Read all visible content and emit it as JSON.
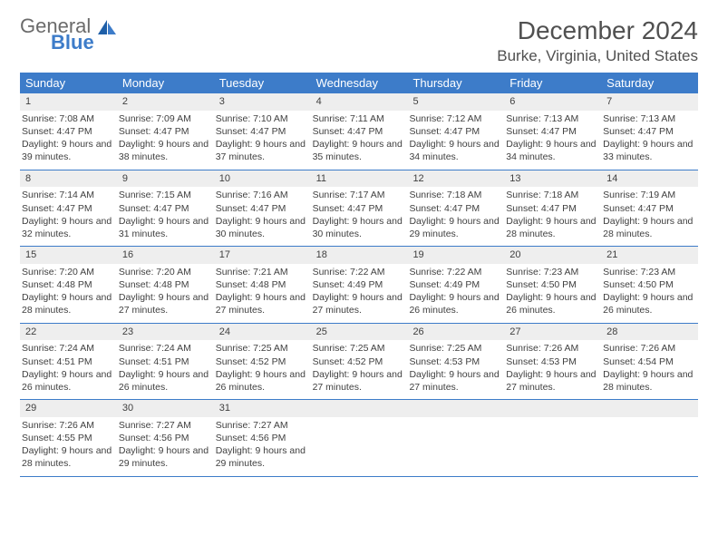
{
  "logo": {
    "word1": "General",
    "word2": "Blue"
  },
  "title": "December 2024",
  "location": "Burke, Virginia, United States",
  "colors": {
    "header_bar": "#3d7cc9",
    "day_num_bg": "#eeeeee",
    "text": "#404040",
    "logo_gray": "#6b6b6b",
    "logo_blue": "#3d7cc9",
    "week_border": "#3d7cc9",
    "background": "#ffffff"
  },
  "days_of_week": [
    "Sunday",
    "Monday",
    "Tuesday",
    "Wednesday",
    "Thursday",
    "Friday",
    "Saturday"
  ],
  "weeks": [
    [
      {
        "n": "1",
        "sunrise": "7:08 AM",
        "sunset": "4:47 PM",
        "dl": "9 hours and 39 minutes."
      },
      {
        "n": "2",
        "sunrise": "7:09 AM",
        "sunset": "4:47 PM",
        "dl": "9 hours and 38 minutes."
      },
      {
        "n": "3",
        "sunrise": "7:10 AM",
        "sunset": "4:47 PM",
        "dl": "9 hours and 37 minutes."
      },
      {
        "n": "4",
        "sunrise": "7:11 AM",
        "sunset": "4:47 PM",
        "dl": "9 hours and 35 minutes."
      },
      {
        "n": "5",
        "sunrise": "7:12 AM",
        "sunset": "4:47 PM",
        "dl": "9 hours and 34 minutes."
      },
      {
        "n": "6",
        "sunrise": "7:13 AM",
        "sunset": "4:47 PM",
        "dl": "9 hours and 34 minutes."
      },
      {
        "n": "7",
        "sunrise": "7:13 AM",
        "sunset": "4:47 PM",
        "dl": "9 hours and 33 minutes."
      }
    ],
    [
      {
        "n": "8",
        "sunrise": "7:14 AM",
        "sunset": "4:47 PM",
        "dl": "9 hours and 32 minutes."
      },
      {
        "n": "9",
        "sunrise": "7:15 AM",
        "sunset": "4:47 PM",
        "dl": "9 hours and 31 minutes."
      },
      {
        "n": "10",
        "sunrise": "7:16 AM",
        "sunset": "4:47 PM",
        "dl": "9 hours and 30 minutes."
      },
      {
        "n": "11",
        "sunrise": "7:17 AM",
        "sunset": "4:47 PM",
        "dl": "9 hours and 30 minutes."
      },
      {
        "n": "12",
        "sunrise": "7:18 AM",
        "sunset": "4:47 PM",
        "dl": "9 hours and 29 minutes."
      },
      {
        "n": "13",
        "sunrise": "7:18 AM",
        "sunset": "4:47 PM",
        "dl": "9 hours and 28 minutes."
      },
      {
        "n": "14",
        "sunrise": "7:19 AM",
        "sunset": "4:47 PM",
        "dl": "9 hours and 28 minutes."
      }
    ],
    [
      {
        "n": "15",
        "sunrise": "7:20 AM",
        "sunset": "4:48 PM",
        "dl": "9 hours and 28 minutes."
      },
      {
        "n": "16",
        "sunrise": "7:20 AM",
        "sunset": "4:48 PM",
        "dl": "9 hours and 27 minutes."
      },
      {
        "n": "17",
        "sunrise": "7:21 AM",
        "sunset": "4:48 PM",
        "dl": "9 hours and 27 minutes."
      },
      {
        "n": "18",
        "sunrise": "7:22 AM",
        "sunset": "4:49 PM",
        "dl": "9 hours and 27 minutes."
      },
      {
        "n": "19",
        "sunrise": "7:22 AM",
        "sunset": "4:49 PM",
        "dl": "9 hours and 26 minutes."
      },
      {
        "n": "20",
        "sunrise": "7:23 AM",
        "sunset": "4:50 PM",
        "dl": "9 hours and 26 minutes."
      },
      {
        "n": "21",
        "sunrise": "7:23 AM",
        "sunset": "4:50 PM",
        "dl": "9 hours and 26 minutes."
      }
    ],
    [
      {
        "n": "22",
        "sunrise": "7:24 AM",
        "sunset": "4:51 PM",
        "dl": "9 hours and 26 minutes."
      },
      {
        "n": "23",
        "sunrise": "7:24 AM",
        "sunset": "4:51 PM",
        "dl": "9 hours and 26 minutes."
      },
      {
        "n": "24",
        "sunrise": "7:25 AM",
        "sunset": "4:52 PM",
        "dl": "9 hours and 26 minutes."
      },
      {
        "n": "25",
        "sunrise": "7:25 AM",
        "sunset": "4:52 PM",
        "dl": "9 hours and 27 minutes."
      },
      {
        "n": "26",
        "sunrise": "7:25 AM",
        "sunset": "4:53 PM",
        "dl": "9 hours and 27 minutes."
      },
      {
        "n": "27",
        "sunrise": "7:26 AM",
        "sunset": "4:53 PM",
        "dl": "9 hours and 27 minutes."
      },
      {
        "n": "28",
        "sunrise": "7:26 AM",
        "sunset": "4:54 PM",
        "dl": "9 hours and 28 minutes."
      }
    ],
    [
      {
        "n": "29",
        "sunrise": "7:26 AM",
        "sunset": "4:55 PM",
        "dl": "9 hours and 28 minutes."
      },
      {
        "n": "30",
        "sunrise": "7:27 AM",
        "sunset": "4:56 PM",
        "dl": "9 hours and 29 minutes."
      },
      {
        "n": "31",
        "sunrise": "7:27 AM",
        "sunset": "4:56 PM",
        "dl": "9 hours and 29 minutes."
      },
      null,
      null,
      null,
      null
    ]
  ],
  "labels": {
    "sunrise": "Sunrise:",
    "sunset": "Sunset:",
    "daylight": "Daylight:"
  }
}
